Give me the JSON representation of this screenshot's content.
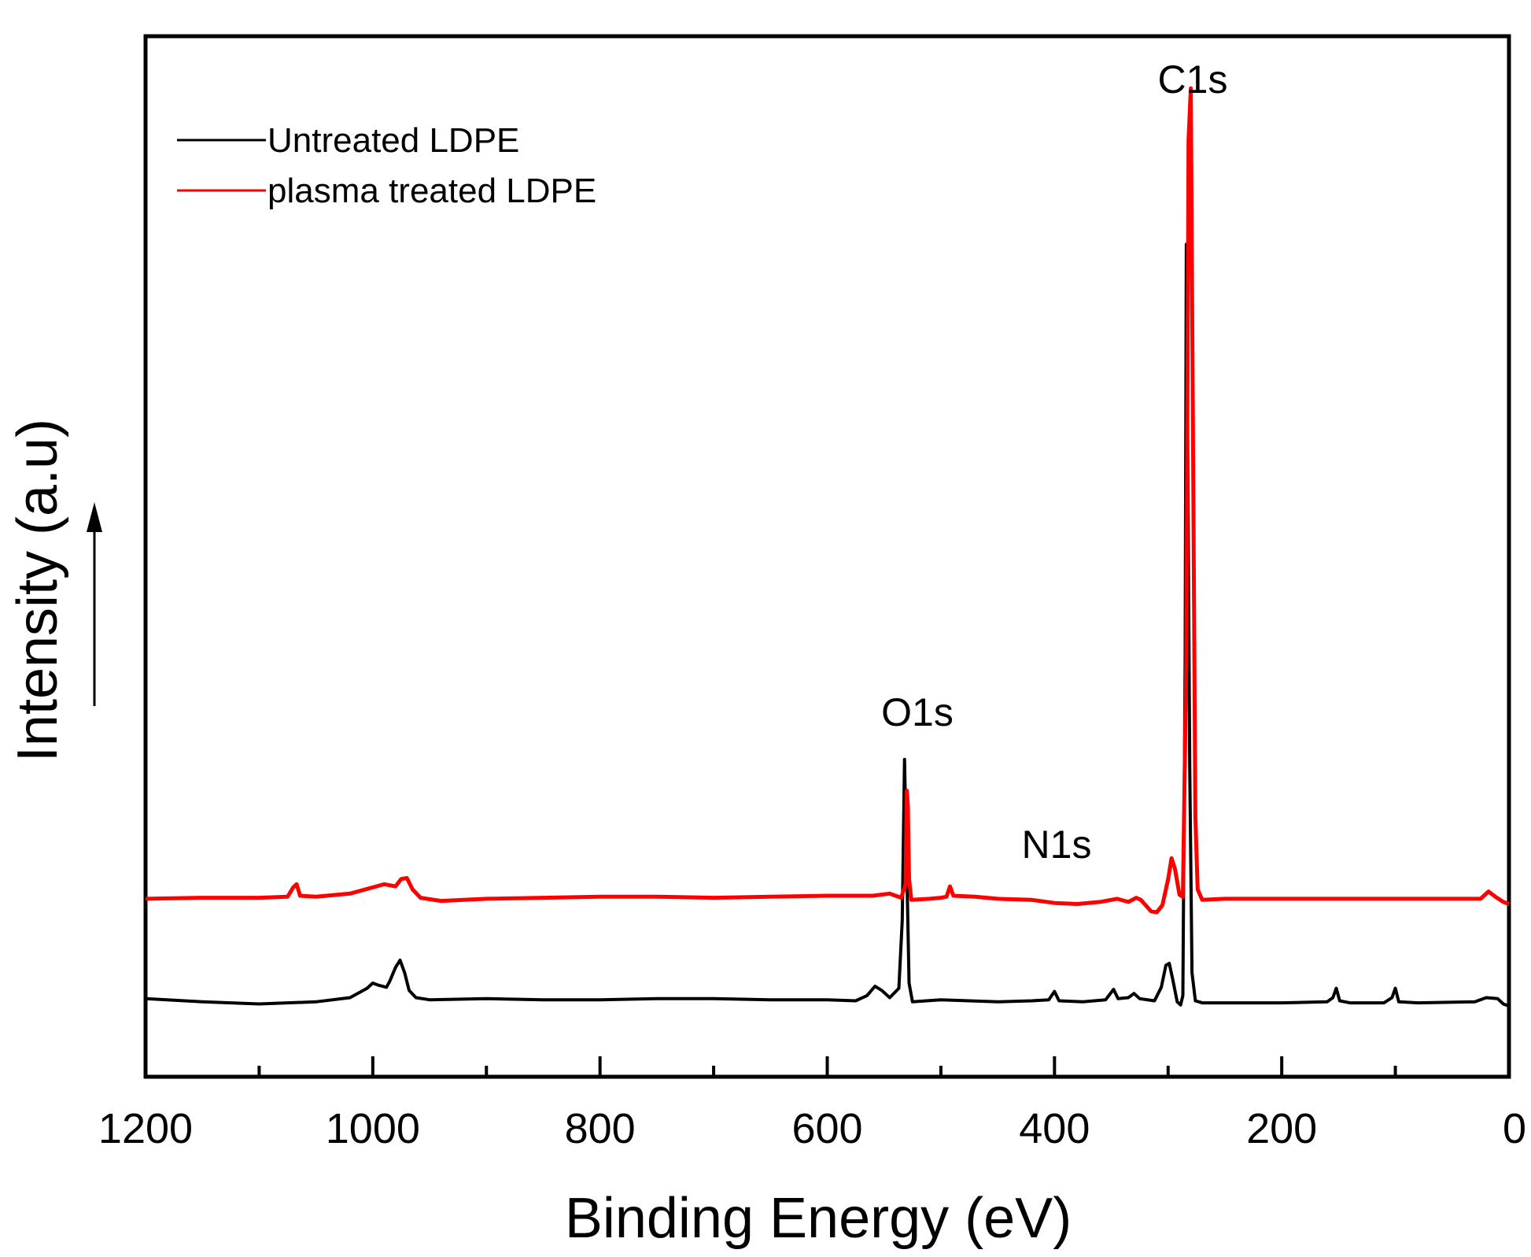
{
  "chart_data": {
    "type": "line",
    "title": "",
    "xlabel": "Binding Energy (eV)",
    "ylabel": "Intensity (a.u)",
    "xlim": [
      1200,
      0
    ],
    "x_reversed": true,
    "ylim": [
      0,
      100
    ],
    "xticks": [
      {
        "value": 1200,
        "label": "1200"
      },
      {
        "value": 1000,
        "label": "1000"
      },
      {
        "value": 800,
        "label": "800"
      },
      {
        "value": 600,
        "label": "600"
      },
      {
        "value": 400,
        "label": "400"
      },
      {
        "value": 200,
        "label": "200"
      },
      {
        "value": 0,
        "label": "0"
      }
    ],
    "minor_xticks": [
      1100,
      900,
      700,
      500,
      300,
      100
    ],
    "grid": false,
    "legend_position": "top-left",
    "series": [
      {
        "name": "Untreated LDPE",
        "color": "#000000",
        "points": [
          [
            1200,
            7.5
          ],
          [
            1150,
            7.2
          ],
          [
            1100,
            7.0
          ],
          [
            1050,
            7.2
          ],
          [
            1020,
            7.6
          ],
          [
            1005,
            8.5
          ],
          [
            1000,
            9.0
          ],
          [
            995,
            8.8
          ],
          [
            988,
            8.6
          ],
          [
            985,
            9.2
          ],
          [
            980,
            10.5
          ],
          [
            976,
            11.2
          ],
          [
            972,
            10.0
          ],
          [
            968,
            8.3
          ],
          [
            962,
            7.6
          ],
          [
            950,
            7.4
          ],
          [
            900,
            7.5
          ],
          [
            850,
            7.4
          ],
          [
            800,
            7.4
          ],
          [
            750,
            7.5
          ],
          [
            700,
            7.5
          ],
          [
            650,
            7.4
          ],
          [
            600,
            7.4
          ],
          [
            575,
            7.3
          ],
          [
            565,
            7.8
          ],
          [
            558,
            8.7
          ],
          [
            552,
            8.3
          ],
          [
            545,
            7.6
          ],
          [
            537,
            8.5
          ],
          [
            534,
            15.0
          ],
          [
            532,
            30.5
          ],
          [
            530,
            20.0
          ],
          [
            528,
            9.0
          ],
          [
            525,
            7.2
          ],
          [
            500,
            7.4
          ],
          [
            450,
            7.2
          ],
          [
            420,
            7.3
          ],
          [
            405,
            7.4
          ],
          [
            400,
            8.2
          ],
          [
            396,
            7.3
          ],
          [
            375,
            7.2
          ],
          [
            355,
            7.4
          ],
          [
            348,
            8.4
          ],
          [
            344,
            7.5
          ],
          [
            335,
            7.6
          ],
          [
            330,
            8.0
          ],
          [
            325,
            7.5
          ],
          [
            312,
            7.3
          ],
          [
            306,
            8.6
          ],
          [
            302,
            10.7
          ],
          [
            299,
            10.9
          ],
          [
            296,
            9.4
          ],
          [
            292,
            7.2
          ],
          [
            289,
            6.9
          ],
          [
            287,
            7.8
          ],
          [
            285,
            40.0
          ],
          [
            284,
            80.0
          ],
          [
            283,
            65.0
          ],
          [
            281,
            30.0
          ],
          [
            279,
            10.0
          ],
          [
            276,
            7.3
          ],
          [
            270,
            7.1
          ],
          [
            200,
            7.1
          ],
          [
            160,
            7.2
          ],
          [
            155,
            7.6
          ],
          [
            152,
            8.5
          ],
          [
            149,
            7.3
          ],
          [
            140,
            7.1
          ],
          [
            110,
            7.1
          ],
          [
            103,
            7.6
          ],
          [
            100,
            8.5
          ],
          [
            97,
            7.2
          ],
          [
            80,
            7.1
          ],
          [
            30,
            7.2
          ],
          [
            20,
            7.6
          ],
          [
            10,
            7.5
          ],
          [
            5,
            7.0
          ],
          [
            0,
            6.8
          ]
        ]
      },
      {
        "name": "plasma treated LDPE",
        "color": "#ff0000",
        "points": [
          [
            1200,
            17.1
          ],
          [
            1150,
            17.2
          ],
          [
            1100,
            17.2
          ],
          [
            1075,
            17.3
          ],
          [
            1070,
            18.2
          ],
          [
            1067,
            18.5
          ],
          [
            1064,
            17.4
          ],
          [
            1050,
            17.3
          ],
          [
            1020,
            17.6
          ],
          [
            1000,
            18.2
          ],
          [
            990,
            18.5
          ],
          [
            980,
            18.3
          ],
          [
            975,
            19.0
          ],
          [
            970,
            19.1
          ],
          [
            965,
            18.0
          ],
          [
            958,
            17.2
          ],
          [
            940,
            16.9
          ],
          [
            900,
            17.1
          ],
          [
            850,
            17.2
          ],
          [
            800,
            17.3
          ],
          [
            750,
            17.3
          ],
          [
            700,
            17.2
          ],
          [
            650,
            17.3
          ],
          [
            600,
            17.4
          ],
          [
            560,
            17.4
          ],
          [
            545,
            17.6
          ],
          [
            535,
            17.2
          ],
          [
            531,
            18.5
          ],
          [
            530,
            27.5
          ],
          [
            529,
            26.0
          ],
          [
            528,
            19.0
          ],
          [
            526,
            17.0
          ],
          [
            510,
            17.1
          ],
          [
            500,
            17.2
          ],
          [
            495,
            17.3
          ],
          [
            492,
            18.3
          ],
          [
            489,
            17.4
          ],
          [
            470,
            17.3
          ],
          [
            450,
            17.1
          ],
          [
            420,
            17.0
          ],
          [
            400,
            16.7
          ],
          [
            380,
            16.6
          ],
          [
            360,
            16.8
          ],
          [
            345,
            17.1
          ],
          [
            335,
            16.8
          ],
          [
            328,
            17.2
          ],
          [
            324,
            17.0
          ],
          [
            315,
            15.9
          ],
          [
            310,
            15.8
          ],
          [
            305,
            16.5
          ],
          [
            300,
            19.0
          ],
          [
            297,
            21.0
          ],
          [
            294,
            20.0
          ],
          [
            290,
            17.5
          ],
          [
            287,
            17.3
          ],
          [
            284,
            40.0
          ],
          [
            282,
            90.0
          ],
          [
            280,
            95.0
          ],
          [
            278,
            60.0
          ],
          [
            276,
            25.0
          ],
          [
            274,
            18.0
          ],
          [
            270,
            17.0
          ],
          [
            250,
            17.1
          ],
          [
            200,
            17.1
          ],
          [
            150,
            17.1
          ],
          [
            100,
            17.1
          ],
          [
            50,
            17.1
          ],
          [
            25,
            17.1
          ],
          [
            18,
            17.8
          ],
          [
            12,
            17.3
          ],
          [
            5,
            16.8
          ],
          [
            0,
            16.6
          ]
        ]
      }
    ],
    "annotations": [
      {
        "text": "C1s",
        "x": 280
      },
      {
        "text": "O1s",
        "x": 530
      },
      {
        "text": "N1s",
        "x": 400
      }
    ]
  }
}
